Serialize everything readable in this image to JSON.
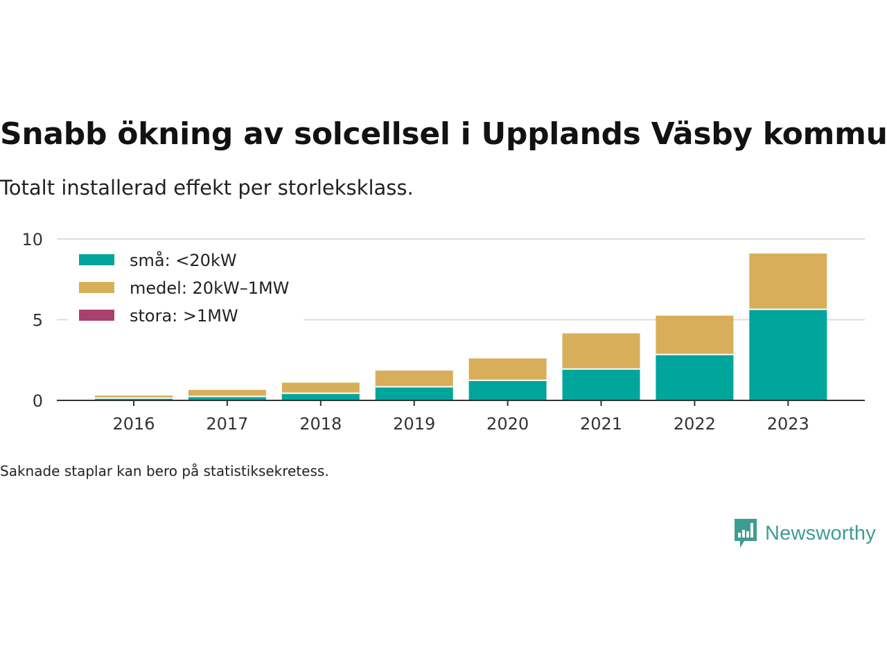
{
  "title": "Snabb ökning av solcellsel i Upplands Väsby kommun",
  "subtitle": "Totalt installerad effekt per storleksklass.",
  "footnote": "Saknade staplar kan bero på statistiksekretess.",
  "brand": {
    "name": "Newsworthy",
    "logo_icon": "newsworthy-bar-chart-icon",
    "color": "#3e9d92"
  },
  "chart_data": {
    "type": "bar",
    "stacked": true,
    "categories": [
      "2016",
      "2017",
      "2018",
      "2019",
      "2020",
      "2021",
      "2022",
      "2023"
    ],
    "series": [
      {
        "name": "små: <20kW",
        "color": "#00a59b",
        "values": [
          0.1,
          0.2,
          0.4,
          0.8,
          1.2,
          1.9,
          2.8,
          5.6
        ]
      },
      {
        "name": "medel: 20kW–1MW",
        "color": "#d9ae5a",
        "values": [
          0.2,
          0.45,
          0.7,
          1.05,
          1.4,
          2.25,
          2.45,
          3.5
        ]
      },
      {
        "name": "stora: >1MW",
        "color": "#a8416b",
        "values": [
          0,
          0,
          0,
          0,
          0,
          0,
          0,
          0
        ]
      }
    ],
    "ylim": [
      0,
      10
    ],
    "yticks": [
      "0",
      "5",
      "10"
    ],
    "xlabel": "",
    "ylabel": "",
    "grid": true,
    "legend_position": "top-left"
  }
}
